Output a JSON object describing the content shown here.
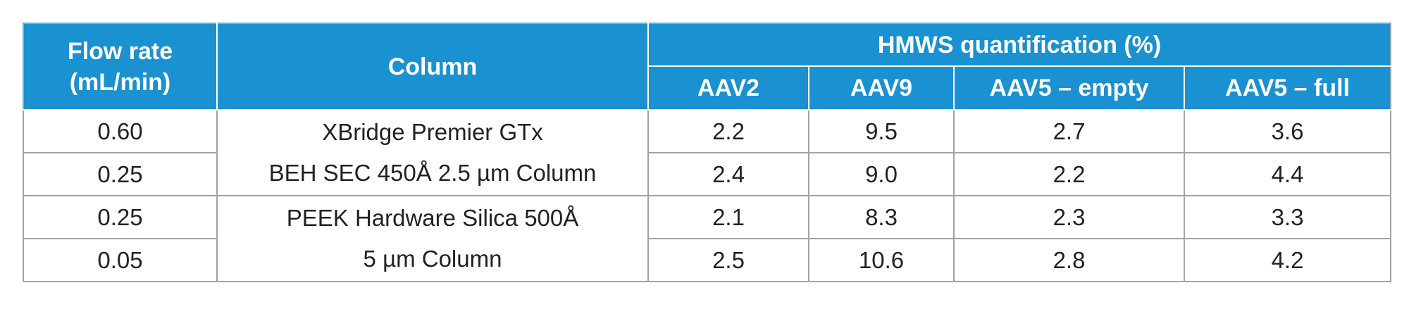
{
  "headers": {
    "flow_rate": [
      "Flow rate",
      "(mL/min)"
    ],
    "column": "Column",
    "hmws": "HMWS quantification (%)",
    "samples": [
      "AAV2",
      "AAV9",
      "AAV5 – empty",
      "AAV5 – full"
    ]
  },
  "rows": [
    {
      "flow": "0.60",
      "values": [
        "2.2",
        "9.5",
        "2.7",
        "3.6"
      ]
    },
    {
      "flow": "0.25",
      "values": [
        "2.4",
        "9.0",
        "2.2",
        "4.4"
      ]
    },
    {
      "flow": "0.25",
      "values": [
        "2.1",
        "8.3",
        "2.3",
        "3.3"
      ]
    },
    {
      "flow": "0.05",
      "values": [
        "2.5",
        "10.6",
        "2.8",
        "4.2"
      ]
    }
  ],
  "columns": [
    [
      "XBridge Premier GTx",
      "BEH SEC 450Å 2.5 µm Column"
    ],
    [
      "PEEK Hardware Silica 500Å",
      "5 µm Column"
    ]
  ]
}
